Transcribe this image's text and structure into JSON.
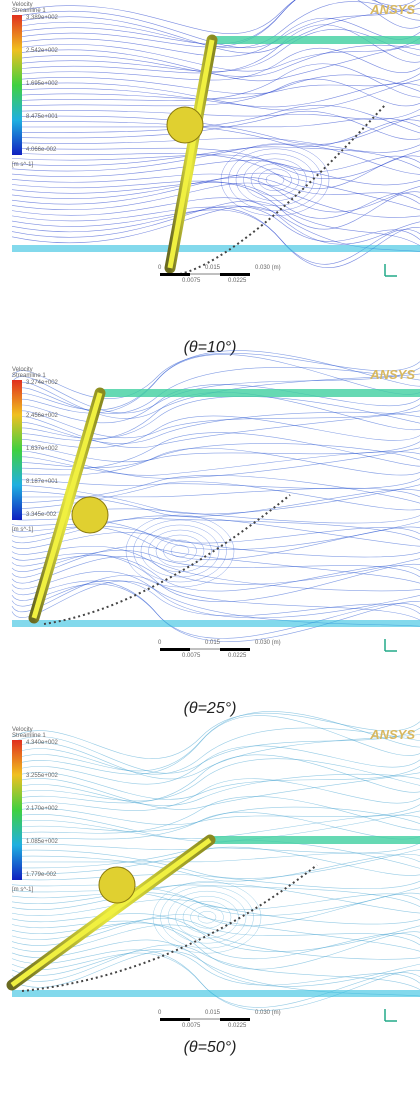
{
  "panels": [
    {
      "logo": "ANSYS",
      "legend_title": "Velocity",
      "legend_subtitle": "Streamline 1",
      "legend_values": [
        "3.389e+002",
        "2.542e+002",
        "1.695e+002",
        "8.475e+001",
        "4.066e-002"
      ],
      "unit": "[m s^-1]",
      "scale_labels": [
        "0",
        "0.015",
        "0.030 (m)",
        "0.0075",
        "0.0225"
      ],
      "caption": "(θ=10°)"
    },
    {
      "logo": "ANSYS",
      "legend_title": "Velocity",
      "legend_subtitle": "Streamline 1",
      "legend_values": [
        "3.274e+002",
        "2.456e+002",
        "1.637e+002",
        "8.187e+001",
        "3.345e-002"
      ],
      "unit": "[m s^-1]",
      "scale_labels": [
        "0",
        "0.015",
        "0.030 (m)",
        "0.0075",
        "0.0225"
      ],
      "caption": "(θ=25°)"
    },
    {
      "logo": "ANSYS",
      "legend_title": "Velocity",
      "legend_subtitle": "Streamline 1",
      "legend_values": [
        "4.340e+002",
        "3.255e+002",
        "2.170e+002",
        "1.085e+002",
        "1.779e-002"
      ],
      "unit": "[m s^-1]",
      "scale_labels": [
        "0",
        "0.015",
        "0.030 (m)",
        "0.0075",
        "0.0225"
      ],
      "caption": "(θ=50°)"
    }
  ]
}
